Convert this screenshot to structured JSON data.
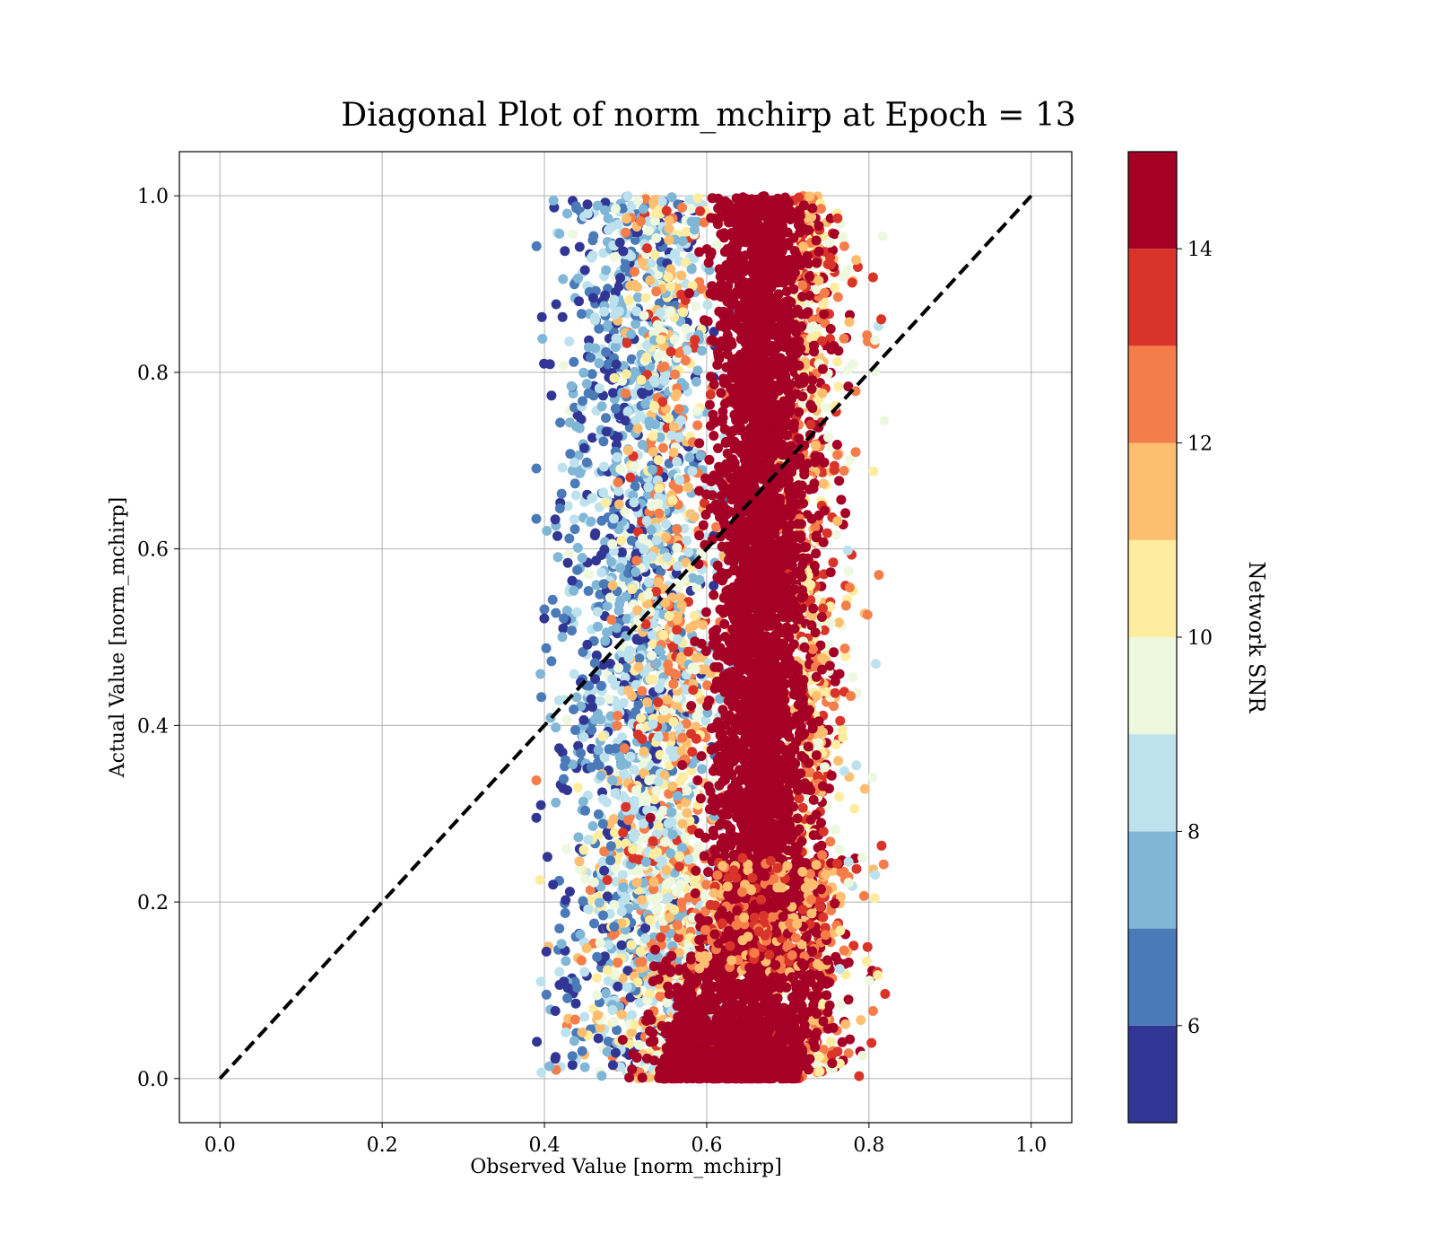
{
  "chart_data": {
    "type": "scatter",
    "title": "Diagonal Plot of norm_mchirp at Epoch = 13",
    "xlabel": "Observed Value [norm_mchirp]",
    "ylabel": "Actual Value [norm_mchirp]",
    "xlim": [
      -0.05,
      1.05
    ],
    "ylim": [
      -0.05,
      1.05
    ],
    "xticks": [
      0.0,
      0.2,
      0.4,
      0.6,
      0.8,
      1.0
    ],
    "xtick_labels": [
      "0.0",
      "0.2",
      "0.4",
      "0.6",
      "0.8",
      "1.0"
    ],
    "yticks": [
      0.0,
      0.2,
      0.4,
      0.6,
      0.8,
      1.0
    ],
    "ytick_labels": [
      "0.0",
      "0.2",
      "0.4",
      "0.6",
      "0.8",
      "1.0"
    ],
    "grid": true,
    "reference_line": {
      "x": [
        0.0,
        1.0
      ],
      "y": [
        0.0,
        1.0
      ],
      "style": "dashed",
      "color": "#000000"
    },
    "colorbar": {
      "label": "Network SNR",
      "range": [
        5,
        15
      ],
      "ticks": [
        6,
        8,
        10,
        12,
        14
      ],
      "tick_labels": [
        "6",
        "8",
        "10",
        "12",
        "14"
      ],
      "bins": [
        {
          "from": 5,
          "to": 6,
          "color": "#313695"
        },
        {
          "from": 6,
          "to": 7,
          "color": "#4a7ab7"
        },
        {
          "from": 7,
          "to": 8,
          "color": "#80b6d6"
        },
        {
          "from": 8,
          "to": 9,
          "color": "#bde2ee"
        },
        {
          "from": 9,
          "to": 10,
          "color": "#eef8df"
        },
        {
          "from": 10,
          "to": 11,
          "color": "#feeda1"
        },
        {
          "from": 11,
          "to": 12,
          "color": "#fdbe70"
        },
        {
          "from": 12,
          "to": 13,
          "color": "#f57d4a"
        },
        {
          "from": 13,
          "to": 14,
          "color": "#d93429"
        },
        {
          "from": 14,
          "to": 15,
          "color": "#a50026"
        }
      ]
    },
    "series": [
      {
        "points_sampled": true,
        "x_range_observed": [
          0.39,
          0.82
        ],
        "y_range_actual": [
          0.0,
          1.0
        ],
        "snr_high_cluster": {
          "x": [
            0.6,
            0.72
          ],
          "snr": 14.5
        },
        "snr_low_cluster": {
          "x": [
            0.42,
            0.6
          ],
          "snr": 7
        }
      }
    ]
  },
  "colors": {
    "grid": "#b0b0b0",
    "axis": "#000000"
  }
}
